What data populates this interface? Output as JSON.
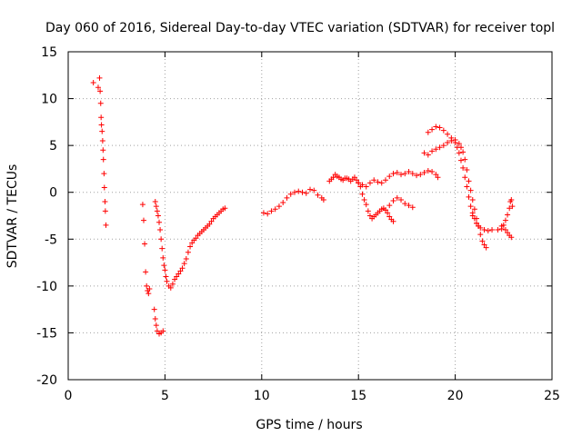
{
  "chart_data": {
    "type": "scatter",
    "title": "Day 060 of 2016, Sidereal Day-to-day VTEC variation (SDTVAR) for receiver topl",
    "xlabel": "GPS time / hours",
    "ylabel": "SDTVAR / TECUs",
    "xlim": [
      0,
      25
    ],
    "ylim": [
      -20,
      15
    ],
    "xticks": [
      0,
      5,
      10,
      15,
      20,
      25
    ],
    "yticks": [
      -20,
      -15,
      -10,
      -5,
      0,
      5,
      10,
      15
    ],
    "grid": true,
    "marker": "+",
    "marker_color": "#ff0000",
    "series": [
      {
        "name": "SDTVAR",
        "segments": [
          [
            [
              1.3,
              11.7
            ],
            [
              1.55,
              11.2
            ],
            [
              1.62,
              12.2
            ],
            [
              1.65,
              10.8
            ],
            [
              1.68,
              9.5
            ],
            [
              1.7,
              8.0
            ],
            [
              1.72,
              7.2
            ],
            [
              1.75,
              6.5
            ],
            [
              1.78,
              5.5
            ],
            [
              1.8,
              4.5
            ],
            [
              1.82,
              3.5
            ],
            [
              1.85,
              2.0
            ],
            [
              1.87,
              0.5
            ],
            [
              1.9,
              -1.0
            ],
            [
              1.92,
              -2.0
            ],
            [
              1.95,
              -3.5
            ]
          ],
          [
            [
              3.85,
              -1.3
            ],
            [
              3.9,
              -3.0
            ],
            [
              3.95,
              -5.5
            ],
            [
              4.0,
              -8.5
            ],
            [
              4.05,
              -10.0
            ],
            [
              4.1,
              -10.5
            ],
            [
              4.15,
              -10.8
            ],
            [
              4.2,
              -10.3
            ]
          ],
          [
            [
              4.45,
              -12.5
            ],
            [
              4.5,
              -13.5
            ],
            [
              4.55,
              -14.2
            ],
            [
              4.6,
              -14.8
            ],
            [
              4.7,
              -15.1
            ],
            [
              4.8,
              -15.0
            ],
            [
              4.9,
              -14.8
            ]
          ],
          [
            [
              4.5,
              -1.0
            ],
            [
              4.55,
              -1.5
            ],
            [
              4.6,
              -2.0
            ],
            [
              4.65,
              -2.5
            ],
            [
              4.7,
              -3.2
            ],
            [
              4.75,
              -4.0
            ],
            [
              4.8,
              -5.0
            ],
            [
              4.85,
              -6.0
            ],
            [
              4.9,
              -7.0
            ],
            [
              4.95,
              -7.8
            ],
            [
              5.0,
              -8.3
            ],
            [
              5.05,
              -9.0
            ],
            [
              5.1,
              -9.5
            ],
            [
              5.2,
              -10.0
            ],
            [
              5.3,
              -10.2
            ],
            [
              5.4,
              -9.8
            ],
            [
              5.5,
              -9.3
            ],
            [
              5.6,
              -9.0
            ],
            [
              5.7,
              -8.7
            ],
            [
              5.8,
              -8.4
            ],
            [
              5.9,
              -8.1
            ],
            [
              6.0,
              -7.6
            ],
            [
              6.1,
              -7.1
            ],
            [
              6.2,
              -6.4
            ],
            [
              6.3,
              -5.8
            ],
            [
              6.4,
              -5.4
            ],
            [
              6.5,
              -5.1
            ],
            [
              6.6,
              -4.9
            ],
            [
              6.7,
              -4.6
            ],
            [
              6.8,
              -4.4
            ],
            [
              6.9,
              -4.2
            ],
            [
              7.0,
              -4.0
            ],
            [
              7.1,
              -3.8
            ],
            [
              7.2,
              -3.6
            ],
            [
              7.3,
              -3.4
            ],
            [
              7.4,
              -3.1
            ],
            [
              7.5,
              -2.8
            ],
            [
              7.6,
              -2.6
            ],
            [
              7.7,
              -2.4
            ],
            [
              7.8,
              -2.2
            ],
            [
              7.9,
              -2.0
            ],
            [
              8.0,
              -1.8
            ],
            [
              8.1,
              -1.7
            ]
          ],
          [
            [
              10.1,
              -2.2
            ],
            [
              10.3,
              -2.3
            ],
            [
              10.5,
              -2.0
            ],
            [
              10.7,
              -1.8
            ],
            [
              10.9,
              -1.5
            ],
            [
              11.1,
              -1.1
            ],
            [
              11.3,
              -0.6
            ],
            [
              11.5,
              -0.2
            ],
            [
              11.7,
              0.0
            ],
            [
              11.9,
              0.1
            ],
            [
              12.1,
              0.0
            ],
            [
              12.3,
              -0.1
            ],
            [
              12.5,
              0.3
            ],
            [
              12.7,
              0.2
            ],
            [
              12.9,
              -0.3
            ],
            [
              13.1,
              -0.6
            ],
            [
              13.2,
              -0.8
            ]
          ],
          [
            [
              13.5,
              1.2
            ],
            [
              13.6,
              1.4
            ],
            [
              13.7,
              1.6
            ],
            [
              13.8,
              1.9
            ],
            [
              13.9,
              1.7
            ],
            [
              14.0,
              1.6
            ],
            [
              14.1,
              1.4
            ],
            [
              14.2,
              1.3
            ],
            [
              14.3,
              1.5
            ],
            [
              14.4,
              1.5
            ],
            [
              14.5,
              1.4
            ],
            [
              14.6,
              1.2
            ],
            [
              14.7,
              1.4
            ],
            [
              14.8,
              1.6
            ],
            [
              14.9,
              1.3
            ],
            [
              15.0,
              1.0
            ],
            [
              15.1,
              0.6
            ],
            [
              15.2,
              -0.2
            ],
            [
              15.3,
              -0.8
            ],
            [
              15.4,
              -1.3
            ],
            [
              15.5,
              -2.0
            ],
            [
              15.6,
              -2.5
            ],
            [
              15.7,
              -2.8
            ],
            [
              15.8,
              -2.6
            ],
            [
              15.9,
              -2.4
            ],
            [
              16.0,
              -2.2
            ],
            [
              16.1,
              -2.0
            ],
            [
              16.2,
              -1.8
            ],
            [
              16.3,
              -1.7
            ],
            [
              16.4,
              -1.9
            ],
            [
              16.5,
              -2.2
            ],
            [
              16.6,
              -2.6
            ],
            [
              16.7,
              -2.9
            ],
            [
              16.8,
              -3.1
            ]
          ],
          [
            [
              15.0,
              1.0
            ],
            [
              15.2,
              0.8
            ],
            [
              15.4,
              0.6
            ],
            [
              15.6,
              1.0
            ],
            [
              15.8,
              1.3
            ],
            [
              16.0,
              1.1
            ],
            [
              16.2,
              1.0
            ],
            [
              16.4,
              1.3
            ],
            [
              16.6,
              1.7
            ],
            [
              16.8,
              2.0
            ],
            [
              17.0,
              2.1
            ],
            [
              17.2,
              1.9
            ],
            [
              17.4,
              2.0
            ],
            [
              17.6,
              2.2
            ],
            [
              17.8,
              2.0
            ],
            [
              18.0,
              1.8
            ],
            [
              18.2,
              1.9
            ],
            [
              18.4,
              2.1
            ],
            [
              18.6,
              2.3
            ],
            [
              18.8,
              2.2
            ],
            [
              19.0,
              1.9
            ],
            [
              19.1,
              1.6
            ]
          ],
          [
            [
              16.4,
              -1.9
            ],
            [
              16.6,
              -1.4
            ],
            [
              16.8,
              -0.9
            ],
            [
              17.0,
              -0.6
            ],
            [
              17.2,
              -0.8
            ],
            [
              17.4,
              -1.2
            ],
            [
              17.6,
              -1.4
            ],
            [
              17.8,
              -1.6
            ]
          ],
          [
            [
              18.6,
              6.4
            ],
            [
              18.8,
              6.7
            ],
            [
              19.0,
              7.0
            ],
            [
              19.2,
              6.9
            ],
            [
              19.4,
              6.6
            ],
            [
              19.6,
              6.2
            ],
            [
              19.8,
              5.8
            ],
            [
              20.0,
              5.3
            ],
            [
              20.1,
              4.8
            ],
            [
              20.2,
              4.2
            ],
            [
              20.3,
              3.4
            ],
            [
              20.4,
              2.6
            ],
            [
              20.5,
              1.6
            ],
            [
              20.6,
              0.6
            ],
            [
              20.7,
              -0.5
            ],
            [
              20.8,
              -1.5
            ],
            [
              20.9,
              -2.2
            ],
            [
              21.0,
              -2.8
            ],
            [
              21.1,
              -3.3
            ],
            [
              21.2,
              -3.6
            ]
          ],
          [
            [
              18.4,
              4.2
            ],
            [
              18.6,
              4.0
            ],
            [
              18.8,
              4.4
            ],
            [
              19.0,
              4.6
            ],
            [
              19.2,
              4.8
            ],
            [
              19.4,
              5.0
            ],
            [
              19.6,
              5.3
            ],
            [
              19.8,
              5.5
            ],
            [
              20.0,
              5.6
            ],
            [
              20.2,
              5.2
            ],
            [
              20.3,
              4.8
            ],
            [
              20.4,
              4.3
            ],
            [
              20.5,
              3.5
            ],
            [
              20.6,
              2.4
            ],
            [
              20.7,
              1.2
            ],
            [
              20.8,
              0.2
            ],
            [
              20.9,
              -0.8
            ],
            [
              21.0,
              -1.8
            ],
            [
              21.1,
              -2.8
            ],
            [
              21.2,
              -3.6
            ],
            [
              21.3,
              -4.5
            ],
            [
              21.4,
              -5.2
            ],
            [
              21.5,
              -5.6
            ],
            [
              21.6,
              -5.9
            ]
          ],
          [
            [
              20.9,
              -2.5
            ],
            [
              21.1,
              -3.3
            ],
            [
              21.3,
              -3.8
            ],
            [
              21.5,
              -4.0
            ],
            [
              21.7,
              -4.1
            ],
            [
              21.9,
              -4.0
            ]
          ],
          [
            [
              22.2,
              -4.0
            ],
            [
              22.4,
              -3.9
            ],
            [
              22.5,
              -3.5
            ],
            [
              22.6,
              -3.0
            ],
            [
              22.7,
              -2.4
            ],
            [
              22.8,
              -1.7
            ],
            [
              22.85,
              -1.0
            ],
            [
              22.9,
              -0.8
            ],
            [
              22.95,
              -1.5
            ]
          ],
          [
            [
              22.4,
              -3.6
            ],
            [
              22.6,
              -4.0
            ],
            [
              22.7,
              -4.3
            ],
            [
              22.8,
              -4.6
            ],
            [
              22.9,
              -4.8
            ]
          ]
        ]
      }
    ]
  }
}
